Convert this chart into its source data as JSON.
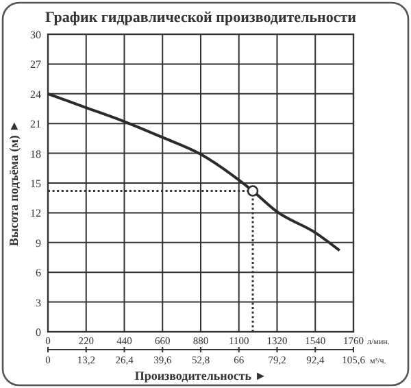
{
  "chart_data": {
    "type": "line",
    "title": "График гидравлической производительности",
    "xlabel": "Производительность ►",
    "ylabel": "Высота подъёма (м) ►",
    "series": [
      {
        "color": "#2b2b2b",
        "x": [
          0,
          220,
          440,
          660,
          880,
          1100,
          1180,
          1320,
          1540,
          1680
        ],
        "values": [
          24,
          22.6,
          21.2,
          19.6,
          17.9,
          15.3,
          14.2,
          12.1,
          10.0,
          8.2
        ]
      },
      {
        "type": "scatter",
        "color": "#2b2b2b",
        "x": [
          1180
        ],
        "values": [
          14.2
        ],
        "marker": "circle"
      }
    ],
    "xlim": [
      0,
      1760
    ],
    "xticks": [
      0,
      220,
      440,
      660,
      880,
      1100,
      1320,
      1540,
      1760
    ],
    "x2lim": [
      0,
      105.6
    ],
    "x2ticks": [
      0,
      {
        "value": 13.2,
        "label": "13,2"
      },
      {
        "value": 26.4,
        "label": "26,4"
      },
      {
        "value": 39.6,
        "label": "39,6"
      },
      {
        "value": 52.8,
        "label": "52,8"
      },
      66,
      {
        "value": 79.2,
        "label": "79,2"
      },
      {
        "value": 92.4,
        "label": "92,4"
      },
      {
        "value": 105.6,
        "label": "105,6"
      }
    ],
    "annotations": [
      "л/мин.",
      "м³/ч."
    ],
    "ylim": [
      0,
      30
    ],
    "yticks": [
      0,
      3,
      6,
      9,
      12,
      15,
      18,
      21,
      24,
      27,
      30
    ],
    "grid": true,
    "ref_lines": [
      {
        "axis": "y",
        "value": 14.2,
        "line_style": "dotted"
      },
      {
        "axis": "x",
        "value": 1180,
        "line_style": "dotted"
      }
    ]
  }
}
